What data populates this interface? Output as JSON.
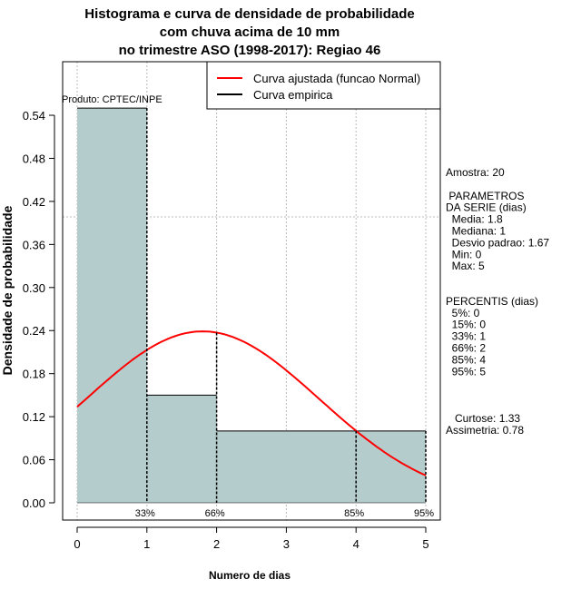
{
  "chart_data": {
    "type": "bar",
    "title": [
      "Histograma e curva de densidade de probabilidade",
      "com chuva acima de 10 mm",
      "no trimestre ASO (1998-2017): Regiao 46"
    ],
    "xlabel": "Numero de dias",
    "ylabel": "Densidade de probabilidade",
    "xlim": [
      -0.2,
      5.2
    ],
    "ylim": [
      0,
      0.6
    ],
    "xticks": [
      "0",
      "1",
      "2",
      "3",
      "4",
      "5"
    ],
    "yticks": [
      "0.00",
      "0.06",
      "0.12",
      "0.18",
      "0.24",
      "0.30",
      "0.36",
      "0.42",
      "0.48",
      "0.54"
    ],
    "bins": [
      {
        "from": 0,
        "to": 1,
        "density": 0.55
      },
      {
        "from": 1,
        "to": 2,
        "density": 0.15
      },
      {
        "from": 2,
        "to": 5,
        "density": 0.1
      }
    ],
    "normal_fit": {
      "mean": 1.8,
      "sd": 1.67,
      "x_range": [
        0,
        5
      ]
    },
    "percentile_lines": [
      {
        "x": 1,
        "label": "33%"
      },
      {
        "x": 2,
        "label": "66%"
      },
      {
        "x": 4,
        "label": "85%"
      },
      {
        "x": 5,
        "label": "95%"
      }
    ],
    "grid": true,
    "legend": {
      "placement": "top-right",
      "entries": [
        {
          "label": "Curva ajustada (funcao Normal)",
          "color": "#ff0000"
        },
        {
          "label": "Curva empirica",
          "color": "#000000"
        }
      ]
    },
    "annotation": "Produto: CPTEC/INPE",
    "bar_color": "#b4cccc"
  },
  "stats": [
    "Amostra: 20",
    "",
    " PARAMETROS",
    "DA SERIE (dias)",
    "  Media: 1.8",
    "  Mediana: 1",
    "  Desvio padrao: 1.67",
    "  Min: 0",
    "  Max: 5",
    "",
    "",
    "PERCENTIS (dias)",
    "  5%: 0",
    "  15%: 0",
    "  33%: 1",
    "  66%: 2",
    "  85%: 4",
    "  95%: 5",
    "",
    "",
    "",
    "   Curtose: 1.33",
    "Assimetria: 0.78"
  ]
}
